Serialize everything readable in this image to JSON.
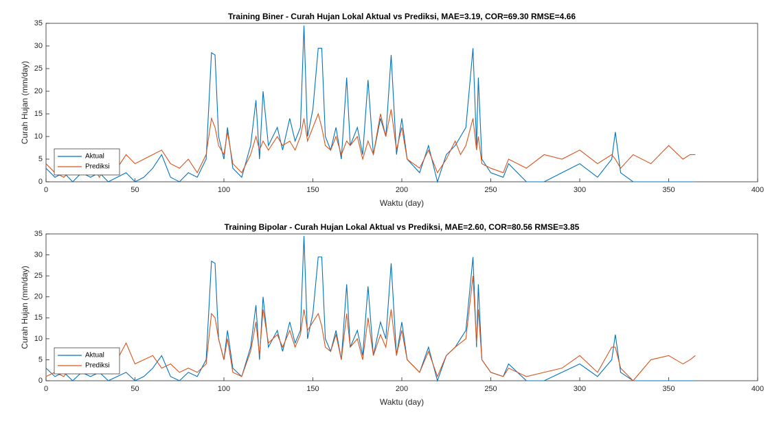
{
  "chart_data": [
    {
      "type": "line",
      "title": "Training Biner - Curah Hujan Lokal Aktual vs Prediksi, MAE=3.19, COR=69.30 RMSE=4.66",
      "x_label": "Waktu (day)",
      "y_label": "Curah Hujan (mm/day)",
      "x": [
        0,
        5,
        10,
        15,
        20,
        25,
        30,
        35,
        40,
        45,
        50,
        55,
        60,
        65,
        70,
        75,
        80,
        85,
        90,
        93,
        95,
        97,
        100,
        102,
        105,
        110,
        115,
        118,
        120,
        122,
        125,
        130,
        133,
        137,
        140,
        143,
        145,
        147,
        150,
        153,
        155,
        157,
        160,
        163,
        166,
        169,
        171,
        175,
        178,
        181,
        184,
        188,
        191,
        194,
        197,
        200,
        203,
        210,
        215,
        220,
        225,
        230,
        233,
        236,
        240,
        242,
        243,
        245,
        250,
        257,
        260,
        270,
        280,
        290,
        300,
        310,
        318,
        320,
        323,
        330,
        340,
        350,
        358,
        362,
        365
      ],
      "series": [
        {
          "name": "Aktual",
          "color": "#0072bd",
          "values": [
            3,
            1,
            2,
            0,
            2,
            1,
            2,
            0,
            1,
            2,
            0,
            1,
            3,
            6,
            1,
            0,
            2,
            1,
            5,
            28.5,
            28,
            10,
            5,
            12,
            3,
            1,
            8,
            18,
            5,
            20,
            8,
            12,
            7,
            14,
            9,
            12,
            34.5,
            10,
            16,
            29.5,
            29.5,
            10,
            7,
            12,
            5,
            23,
            8,
            12,
            6,
            22.5,
            6,
            14,
            10,
            28,
            6,
            14,
            5,
            2,
            8,
            0,
            6,
            8,
            10,
            12,
            29.5,
            8,
            23,
            5,
            2,
            1,
            4,
            0,
            0,
            2,
            4,
            1,
            5,
            11,
            2,
            0,
            0,
            0,
            0,
            0,
            0
          ]
        },
        {
          "name": "Prediksi",
          "color": "#d95319",
          "values": [
            4,
            2,
            1,
            3,
            2,
            4,
            1,
            5,
            3,
            6,
            4,
            5,
            6,
            7,
            4,
            3,
            5,
            2,
            6,
            14,
            12,
            8,
            6,
            11,
            4,
            2,
            6,
            10,
            7,
            9,
            7,
            10,
            8,
            9,
            7,
            10,
            14,
            9,
            12,
            15,
            12,
            8,
            7,
            10,
            6,
            9,
            8,
            10,
            5,
            9,
            6,
            15,
            10,
            16,
            7,
            12,
            5,
            3,
            7,
            2,
            5,
            9,
            6,
            8,
            14,
            7,
            10,
            4,
            3,
            2,
            5,
            3,
            6,
            5,
            7,
            4,
            6,
            5,
            3,
            6,
            4,
            8,
            5,
            6,
            6
          ]
        }
      ],
      "xlim": [
        0,
        400
      ],
      "xticks": [
        0,
        50,
        100,
        150,
        200,
        250,
        300,
        350,
        400
      ],
      "ylim": [
        0,
        35
      ],
      "yticks": [
        0,
        5,
        10,
        15,
        20,
        25,
        30,
        35
      ],
      "legend": "lower left"
    },
    {
      "type": "line",
      "title": "Training Bipolar - Curah Hujan Lokal Aktual vs Prediksi, MAE=2.60, COR=80.56 RMSE=3.85",
      "x_label": "Waktu (day)",
      "y_label": "Curah Hujan (mm/day)",
      "x": [
        0,
        5,
        10,
        15,
        20,
        25,
        30,
        35,
        40,
        45,
        50,
        55,
        60,
        65,
        70,
        75,
        80,
        85,
        90,
        93,
        95,
        97,
        100,
        102,
        105,
        110,
        115,
        118,
        120,
        122,
        125,
        130,
        133,
        137,
        140,
        143,
        145,
        147,
        150,
        153,
        155,
        157,
        160,
        163,
        166,
        169,
        171,
        175,
        178,
        181,
        184,
        188,
        191,
        194,
        197,
        200,
        203,
        210,
        215,
        220,
        225,
        230,
        233,
        236,
        240,
        242,
        243,
        245,
        250,
        257,
        260,
        270,
        280,
        290,
        300,
        310,
        318,
        320,
        323,
        330,
        340,
        350,
        358,
        362,
        365
      ],
      "series": [
        {
          "name": "Aktual",
          "color": "#0072bd",
          "values": [
            3,
            1,
            2,
            0,
            2,
            1,
            2,
            0,
            1,
            2,
            0,
            1,
            3,
            6,
            1,
            0,
            2,
            1,
            5,
            28.5,
            28,
            10,
            5,
            12,
            3,
            1,
            8,
            18,
            5,
            20,
            8,
            12,
            7,
            14,
            9,
            12,
            34.5,
            10,
            16,
            29.5,
            29.5,
            10,
            7,
            12,
            5,
            23,
            8,
            12,
            6,
            22.5,
            6,
            14,
            10,
            28,
            6,
            14,
            5,
            2,
            8,
            0,
            6,
            8,
            10,
            12,
            29.5,
            8,
            23,
            5,
            2,
            1,
            4,
            0,
            0,
            2,
            4,
            1,
            5,
            11,
            2,
            0,
            0,
            0,
            0,
            0,
            0
          ]
        },
        {
          "name": "Prediksi",
          "color": "#d95319",
          "values": [
            1,
            2,
            1,
            4,
            2,
            3,
            2,
            3,
            5,
            9,
            4,
            5,
            6,
            3,
            4,
            2,
            3,
            2,
            4,
            16,
            15,
            10,
            5,
            10,
            2,
            1,
            7,
            14,
            6,
            17,
            9,
            11,
            8,
            12,
            8,
            11,
            17,
            12,
            14,
            16,
            13,
            8,
            7,
            11,
            5,
            16,
            8,
            10,
            5,
            15,
            6,
            11,
            8,
            17,
            6,
            12,
            5,
            2,
            7,
            1,
            6,
            8,
            9,
            10,
            25,
            9,
            17,
            5,
            2,
            1,
            3,
            1,
            2,
            3,
            6,
            2,
            8,
            8,
            3,
            0,
            5,
            6,
            4,
            5,
            6
          ]
        }
      ],
      "xlim": [
        0,
        400
      ],
      "xticks": [
        0,
        50,
        100,
        150,
        200,
        250,
        300,
        350,
        400
      ],
      "ylim": [
        0,
        35
      ],
      "yticks": [
        0,
        5,
        10,
        15,
        20,
        25,
        30,
        35
      ],
      "legend": "lower left"
    }
  ]
}
